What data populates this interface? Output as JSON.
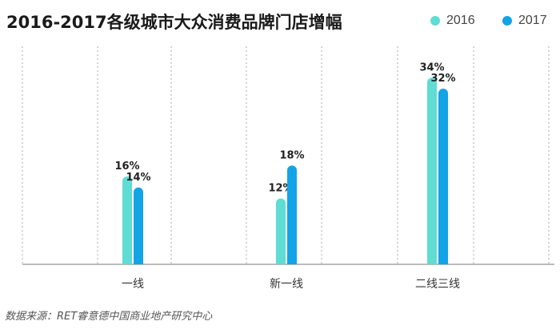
{
  "colors": {
    "series_2016": "#5fdcd3",
    "series_2017": "#13a3e6",
    "grid": "#aaaaaa",
    "axis": "#777777"
  },
  "chart_data": {
    "type": "bar",
    "title": "2016-2017各级城市大众消费品牌门店增幅",
    "categories": [
      "一线",
      "新一线",
      "二线三线"
    ],
    "series": [
      {
        "name": "2016",
        "values": [
          16,
          12,
          34
        ]
      },
      {
        "name": "2017",
        "values": [
          14,
          18,
          32
        ]
      }
    ],
    "value_labels": [
      [
        "16%",
        "12%",
        "34%"
      ],
      [
        "14%",
        "18%",
        "32%"
      ]
    ],
    "ylim": [
      0,
      40
    ],
    "grid": "vertical dotted separators",
    "legend_position": "top-right"
  },
  "source": "数据来源：RET睿意德中国商业地产研究中心"
}
